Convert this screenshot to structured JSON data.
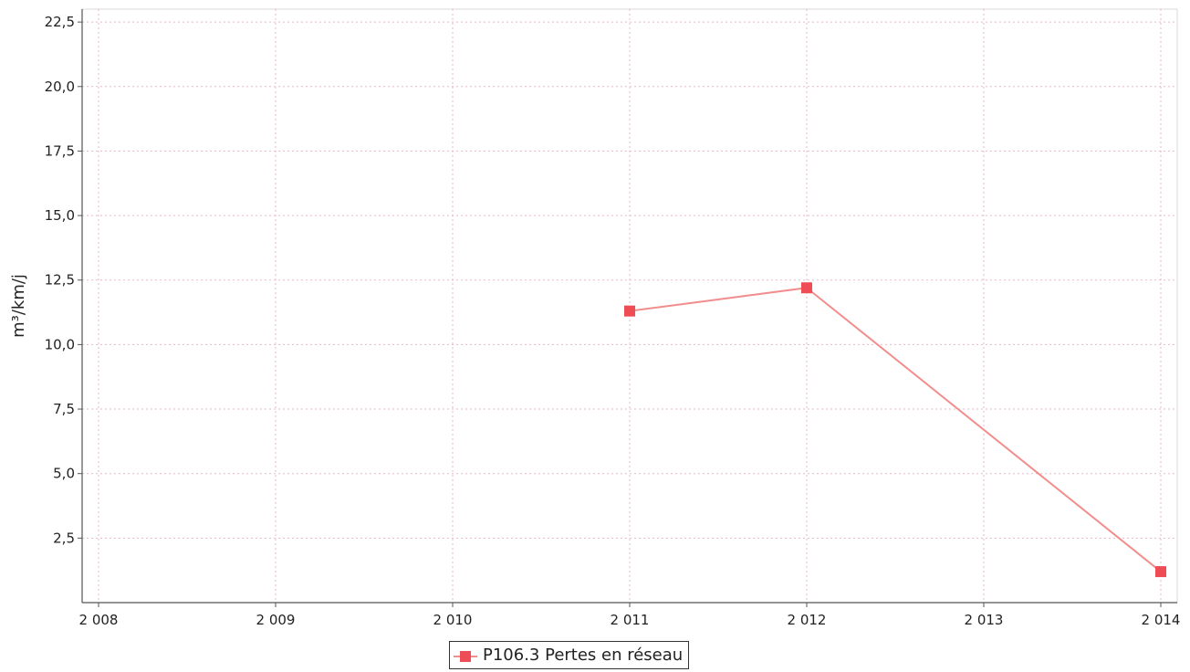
{
  "chart_data": {
    "type": "line",
    "title": "",
    "xlabel": "",
    "ylabel": "m³/km/j",
    "x": [
      2011,
      2012,
      2014
    ],
    "series": [
      {
        "name": "P106.3 Pertes en réseau",
        "x": [
          2011,
          2012,
          2014
        ],
        "values": [
          11.3,
          12.2,
          1.2
        ],
        "color": "#ee4d55",
        "line_color": "#f28d8d",
        "marker": "square"
      }
    ],
    "xlim": [
      2008,
      2014
    ],
    "ylim": [
      0,
      23.0
    ],
    "x_ticks": [
      2008,
      2009,
      2010,
      2011,
      2012,
      2013,
      2014
    ],
    "x_tick_labels": [
      "2 008",
      "2 009",
      "2 010",
      "2 011",
      "2 012",
      "2 013",
      "2 014"
    ],
    "y_ticks": [
      2.5,
      5,
      7.5,
      10,
      12.5,
      15,
      17.5,
      20,
      22.5
    ],
    "y_tick_labels": [
      "2,5",
      "5,0",
      "7,5",
      "10,0",
      "12,5",
      "15,0",
      "17,5",
      "20,0",
      "22,5"
    ],
    "grid": true,
    "grid_color": "#e6b8c8",
    "legend_position": "bottom-center"
  }
}
